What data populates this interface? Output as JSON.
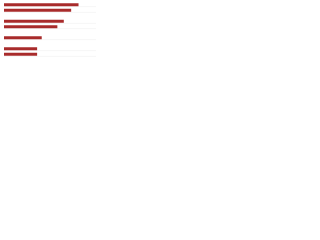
{
  "chart_data": {
    "type": "bar",
    "orientation": "horizontal",
    "categories": [
      null,
      null,
      null,
      null,
      null,
      null,
      null,
      null,
      null,
      null
    ],
    "values": [
      81,
      73,
      null,
      65,
      58,
      null,
      41,
      null,
      36,
      36
    ],
    "color": "#a82b2b",
    "xlim": [
      0,
      100
    ]
  }
}
